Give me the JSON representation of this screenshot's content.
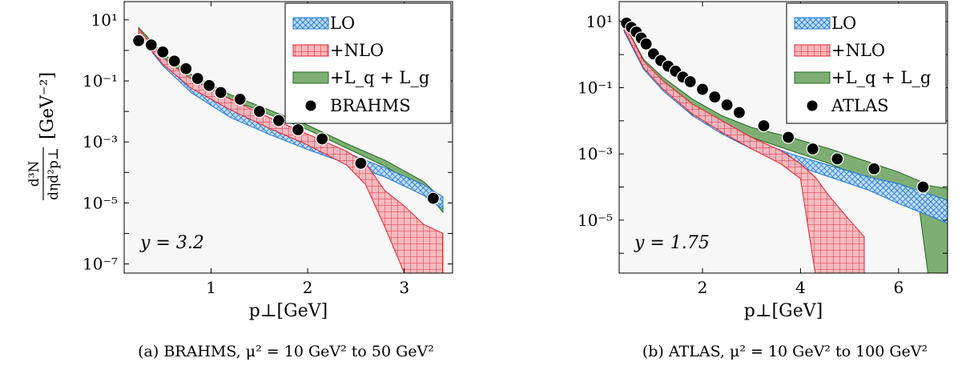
{
  "ylabel": {
    "numerator": "d³N",
    "denominator": "dηd²p⊥",
    "unit": "[GeV⁻²]"
  },
  "chart_data": [
    {
      "type": "line",
      "caption": "(a) BRAHMS, μ² = 10 GeV² to 50 GeV²",
      "panel_label": "y = 3.2",
      "xlabel": "p⊥[GeV]",
      "xlim": [
        0.1,
        3.5
      ],
      "ylim_log10": [
        -7.3,
        1.6
      ],
      "yscale": "log",
      "xticks": [
        1,
        2,
        3
      ],
      "yticks": [
        {
          "exp": 1,
          "label": "10¹"
        },
        {
          "exp": -1,
          "label": "10⁻¹"
        },
        {
          "exp": -3,
          "label": "10⁻³"
        },
        {
          "exp": -5,
          "label": "10⁻⁵"
        },
        {
          "exp": -7,
          "label": "10⁻⁷"
        }
      ],
      "grid": false,
      "legend_position": "top-right",
      "series": [
        {
          "name": "LO",
          "kind": "band",
          "color": "#1f77d4",
          "fill": "#bcdcf5",
          "x": [
            0.25,
            0.5,
            0.8,
            1.2,
            1.6,
            2.0,
            2.4,
            2.8,
            3.2,
            3.4
          ],
          "log10_upper": [
            0.6,
            -0.3,
            -1.05,
            -1.7,
            -2.3,
            -2.85,
            -3.35,
            -3.85,
            -4.4,
            -4.8
          ],
          "log10_lower": [
            0.5,
            -0.5,
            -1.4,
            -2.2,
            -2.75,
            -3.25,
            -3.7,
            -4.15,
            -4.75,
            -5.2
          ]
        },
        {
          "name": "+NLO",
          "kind": "band",
          "color": "#e0202f",
          "fill": "#f6b6ba",
          "x": [
            0.25,
            0.5,
            0.8,
            1.2,
            1.6,
            2.0,
            2.4,
            2.6,
            2.8,
            3.0,
            3.2,
            3.4
          ],
          "log10_upper": [
            0.7,
            -0.25,
            -0.95,
            -1.6,
            -2.2,
            -2.75,
            -3.3,
            -3.7,
            -4.6,
            -5.1,
            -5.7,
            -6.0
          ],
          "log10_lower": [
            0.5,
            -0.45,
            -1.25,
            -1.95,
            -2.55,
            -3.1,
            -3.75,
            -4.4,
            -5.8,
            -7.3,
            -7.3,
            -7.3
          ]
        },
        {
          "name": "+L_q + L_g",
          "kind": "band",
          "color": "#1e6b1e",
          "fill": "#7fae74",
          "x": [
            0.25,
            0.5,
            0.8,
            1.2,
            1.6,
            2.0,
            2.4,
            2.8,
            3.2,
            3.4
          ],
          "log10_upper": [
            0.75,
            -0.1,
            -0.8,
            -1.45,
            -1.95,
            -2.45,
            -3.05,
            -3.6,
            -4.3,
            -4.9
          ],
          "log10_lower": [
            0.65,
            -0.2,
            -0.95,
            -1.6,
            -2.1,
            -2.6,
            -3.2,
            -3.8,
            -4.55,
            -5.3
          ]
        },
        {
          "name": "BRAHMS",
          "kind": "points",
          "color": "#000000",
          "x": [
            0.25,
            0.38,
            0.5,
            0.62,
            0.74,
            0.86,
            0.98,
            1.1,
            1.3,
            1.5,
            1.7,
            1.9,
            2.15,
            2.55,
            3.3
          ],
          "log10_y": [
            0.32,
            0.18,
            -0.05,
            -0.35,
            -0.6,
            -0.92,
            -1.15,
            -1.38,
            -1.6,
            -2.0,
            -2.3,
            -2.6,
            -2.9,
            -3.7,
            -4.85
          ]
        }
      ]
    },
    {
      "type": "line",
      "caption": "(b) ATLAS, μ² = 10 GeV² to 100 GeV²",
      "panel_label": "y = 1.75",
      "xlabel": "p⊥[GeV]",
      "xlim": [
        0.3,
        7.0
      ],
      "ylim_log10": [
        -6.6,
        1.6
      ],
      "yscale": "log",
      "xticks": [
        2,
        4,
        6
      ],
      "yticks": [
        {
          "exp": 1,
          "label": "10¹"
        },
        {
          "exp": -1,
          "label": "10⁻¹"
        },
        {
          "exp": -3,
          "label": "10⁻³"
        },
        {
          "exp": -5,
          "label": "10⁻⁵"
        }
      ],
      "grid": false,
      "legend_position": "top-right",
      "series": [
        {
          "name": "LO",
          "kind": "band",
          "color": "#1f77d4",
          "fill": "#bcdcf5",
          "x": [
            0.4,
            0.8,
            1.2,
            1.8,
            2.4,
            3.0,
            3.8,
            4.6,
            5.4,
            6.0,
            6.6,
            7.0
          ],
          "log10_upper": [
            0.9,
            -0.3,
            -0.9,
            -1.6,
            -2.1,
            -2.55,
            -3.0,
            -3.35,
            -3.7,
            -3.9,
            -4.2,
            -4.4
          ],
          "log10_lower": [
            0.7,
            -0.45,
            -1.1,
            -1.85,
            -2.4,
            -2.85,
            -3.3,
            -3.7,
            -4.1,
            -4.5,
            -4.85,
            -5.1
          ]
        },
        {
          "name": "+NLO",
          "kind": "band",
          "color": "#e0202f",
          "fill": "#f6b6ba",
          "x": [
            0.4,
            0.8,
            1.2,
            1.8,
            2.4,
            3.0,
            3.6,
            4.0,
            4.3,
            4.6,
            5.0,
            5.3
          ],
          "log10_upper": [
            0.95,
            -0.2,
            -0.8,
            -1.5,
            -2.0,
            -2.5,
            -2.9,
            -3.3,
            -3.7,
            -4.3,
            -5.0,
            -5.5
          ],
          "log10_lower": [
            0.75,
            -0.4,
            -1.05,
            -1.8,
            -2.35,
            -2.85,
            -3.3,
            -3.75,
            -6.6,
            -6.6,
            -6.6,
            -6.6
          ]
        },
        {
          "name": "+L_q + L_g",
          "kind": "band",
          "color": "#1e6b1e",
          "fill": "#7fae74",
          "x": [
            0.4,
            0.8,
            1.2,
            1.8,
            2.4,
            3.0,
            3.8,
            4.6,
            5.4,
            6.0,
            6.4,
            6.6,
            7.0
          ],
          "log10_upper": [
            0.95,
            -0.15,
            -0.7,
            -1.35,
            -1.85,
            -2.2,
            -2.5,
            -2.85,
            -3.25,
            -3.55,
            -3.8,
            -3.95,
            -4.05
          ],
          "log10_lower": [
            0.8,
            -0.3,
            -0.9,
            -1.6,
            -2.1,
            -2.5,
            -2.9,
            -3.3,
            -3.8,
            -4.2,
            -4.4,
            -6.6,
            -6.6
          ]
        },
        {
          "name": "ATLAS",
          "kind": "points",
          "color": "#000000",
          "x": [
            0.45,
            0.55,
            0.65,
            0.75,
            0.85,
            1.0,
            1.15,
            1.3,
            1.45,
            1.6,
            1.75,
            2.0,
            2.25,
            2.5,
            2.75,
            3.25,
            3.75,
            4.25,
            4.75,
            5.5,
            6.5
          ],
          "log10_y": [
            0.95,
            0.82,
            0.68,
            0.5,
            0.32,
            0.02,
            -0.18,
            -0.35,
            -0.5,
            -0.68,
            -0.82,
            -1.05,
            -1.28,
            -1.52,
            -1.75,
            -2.15,
            -2.5,
            -2.85,
            -3.15,
            -3.45,
            -4.0
          ]
        }
      ]
    }
  ]
}
